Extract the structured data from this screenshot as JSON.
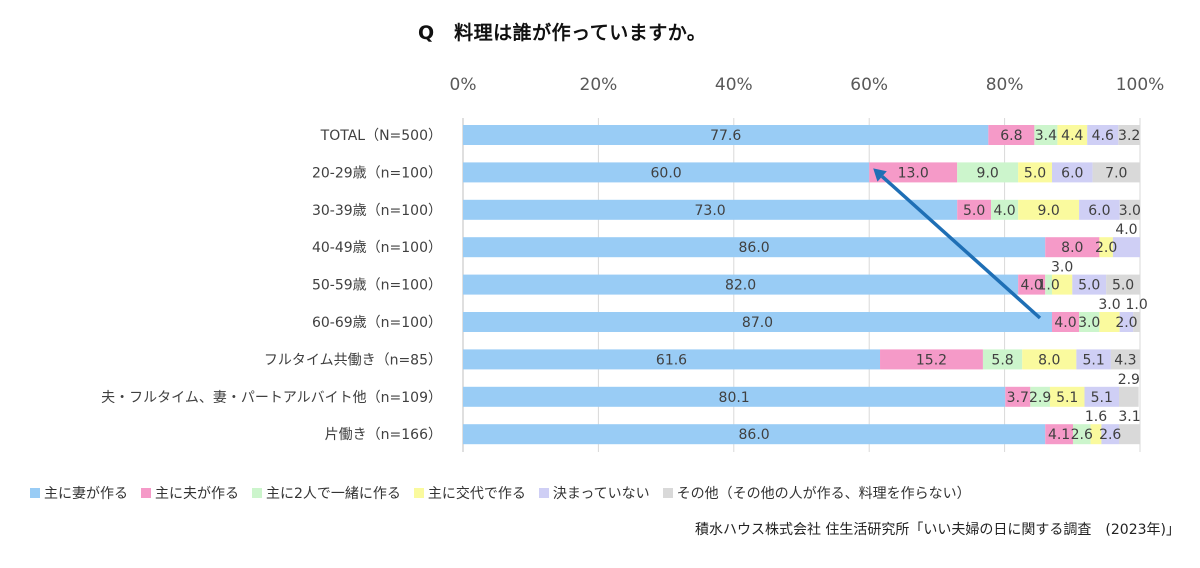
{
  "chart_data": {
    "type": "bar",
    "orientation": "horizontal",
    "stacked": "percent",
    "title": "Q　料理は誰が作っていますか。",
    "x_ticks": [
      "0%",
      "20%",
      "40%",
      "60%",
      "80%",
      "100%"
    ],
    "xlim": [
      0,
      100
    ],
    "grid": true,
    "legend_position": "bottom",
    "categories": [
      "TOTAL（N=500）",
      "20-29歳（n=100）",
      "30-39歳（n=100）",
      "40-49歳（n=100）",
      "50-59歳（n=100）",
      "60-69歳（n=100）",
      "フルタイム共働き（n=85）",
      "夫・フルタイム、妻・パートアルバイト他（n=109）",
      "片働き（n=166）"
    ],
    "series": [
      {
        "name": "主に妻が作る",
        "color": "#99ccf5",
        "values": [
          77.6,
          60.0,
          73.0,
          86.0,
          82.0,
          87.0,
          61.6,
          80.1,
          86.0
        ]
      },
      {
        "name": "主に夫が作る",
        "color": "#f59ac8",
        "values": [
          6.8,
          13.0,
          5.0,
          8.0,
          4.0,
          4.0,
          15.2,
          3.7,
          4.1
        ]
      },
      {
        "name": "主に2人で一緒に作る",
        "color": "#ccf5cc",
        "values": [
          3.4,
          9.0,
          4.0,
          0,
          1.0,
          3.0,
          5.8,
          2.9,
          2.6
        ]
      },
      {
        "name": "主に交代で作る",
        "color": "#fafa9e",
        "values": [
          4.4,
          5.0,
          9.0,
          2.0,
          3.0,
          3.0,
          8.0,
          5.1,
          1.6
        ]
      },
      {
        "name": "決まっていない",
        "color": "#cfcff5",
        "values": [
          4.6,
          6.0,
          6.0,
          4.0,
          5.0,
          2.0,
          5.1,
          5.1,
          2.6
        ]
      },
      {
        "name": "その他（その他の人が作る、料理を作らない）",
        "color": "#d9d9d9",
        "values": [
          3.2,
          7.0,
          3.0,
          0,
          5.0,
          1.0,
          4.3,
          2.9,
          3.1
        ]
      }
    ],
    "data_labels": [
      [
        "77.6",
        "6.8",
        "3.4",
        "4.4",
        "4.6",
        "3.2"
      ],
      [
        "60.0",
        "13.0",
        "9.0",
        "5.0",
        "6.0",
        "7.0"
      ],
      [
        "73.0",
        "5.0",
        "4.0",
        "9.0",
        "6.0",
        "3.0"
      ],
      [
        "86.0",
        "8.0",
        "",
        "2.0",
        "4.0",
        ""
      ],
      [
        "82.0",
        "4.0",
        "1.0",
        "3.0",
        "5.0",
        "5.0"
      ],
      [
        "87.0",
        "4.0",
        "3.0",
        "3.0",
        "2.0",
        "1.0"
      ],
      [
        "61.6",
        "15.2",
        "5.8",
        "8.0",
        "5.1",
        "4.3"
      ],
      [
        "80.1",
        "3.7",
        "2.9",
        "5.1",
        "5.1",
        "2.9"
      ],
      [
        "86.0",
        "4.1",
        "2.6",
        "1.6",
        "2.6",
        "3.1"
      ]
    ],
    "annotation": {
      "type": "arrow",
      "color": "#1f6fb5",
      "from": [
        87,
        "60-69歳（n=100）"
      ],
      "to": [
        60,
        "20-29歳（n=100）"
      ]
    }
  },
  "source": "積水ハウス株式会社 住生活研究所「いい夫婦の日に関する調査　(2023年)」"
}
